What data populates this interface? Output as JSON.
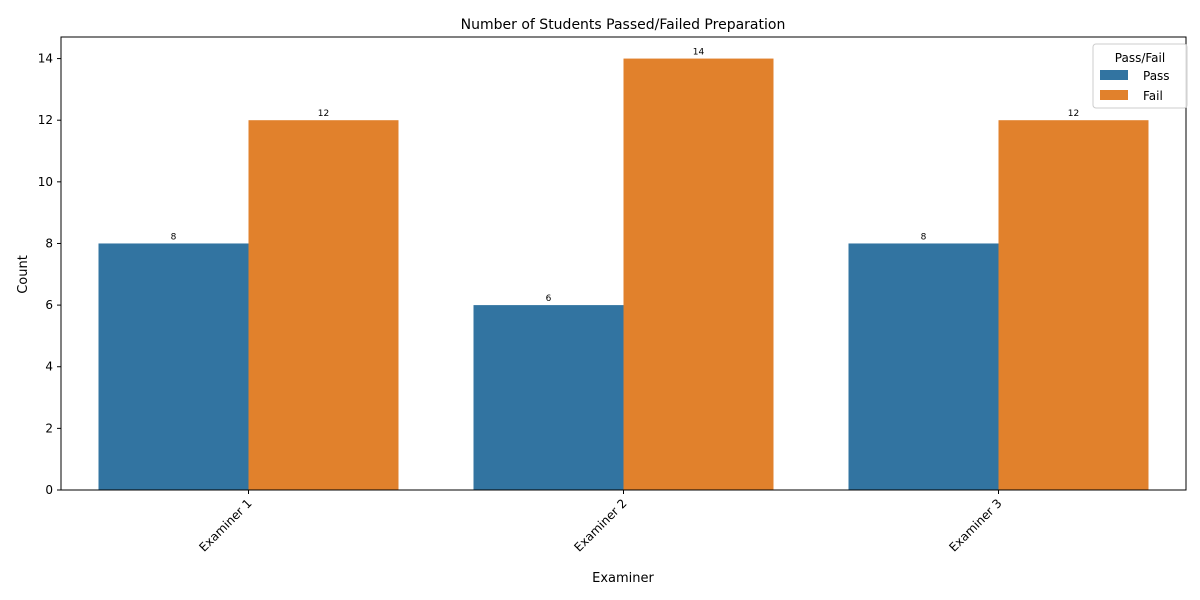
{
  "chart_data": {
    "type": "bar",
    "title": "Number of Students Passed/Failed Preparation",
    "xlabel": "Examiner",
    "ylabel": "Count",
    "categories": [
      "Examiner 1",
      "Examiner 2",
      "Examiner 3"
    ],
    "series": [
      {
        "name": "Pass",
        "values": [
          8,
          6,
          8
        ],
        "color": "#3274a1"
      },
      {
        "name": "Fail",
        "values": [
          12,
          14,
          12
        ],
        "color": "#e1812c"
      }
    ],
    "ylim": [
      0,
      14.7
    ],
    "yticks": [
      0,
      2,
      4,
      6,
      8,
      10,
      12,
      14
    ],
    "legend": {
      "title": "Pass/Fail",
      "position": "top-right"
    },
    "grid": false,
    "data_labels": true
  }
}
